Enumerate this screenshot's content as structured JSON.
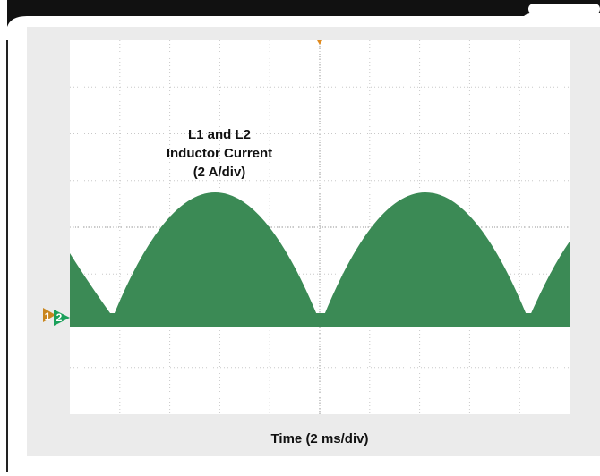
{
  "annotation": {
    "lines": [
      "L1 and L2",
      "Inductor Current",
      "(2 A/div)"
    ]
  },
  "x_axis_label": "Time (2 ms/div)",
  "markers": [
    "1",
    "2"
  ]
}
